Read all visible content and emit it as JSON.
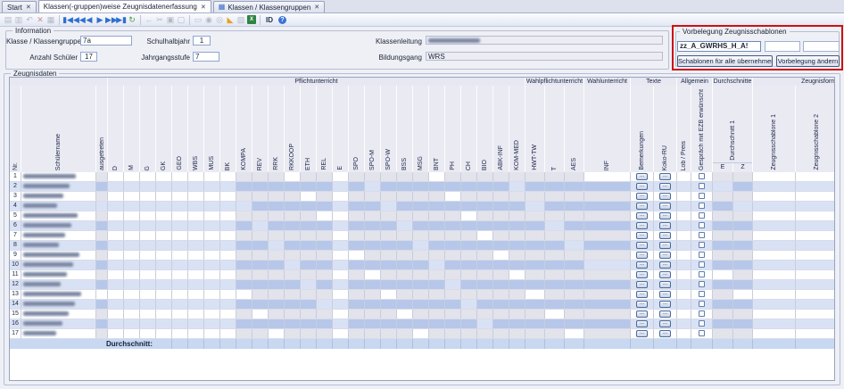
{
  "ui": {
    "close_glyph": "✕",
    "accent_red": "#cc1111"
  },
  "tabs": [
    {
      "label": "Start"
    },
    {
      "label": "Klassen(-gruppen)weise Zeugnisdatenerfassung",
      "active": true
    },
    {
      "label": "Klassen / Klassengruppen",
      "icon_glyph": "▦"
    }
  ],
  "toolbar": {
    "id_label": "ID",
    "items": [
      {
        "name": "save-icon",
        "glyph": "▤",
        "style": "dis"
      },
      {
        "name": "save-all-icon",
        "glyph": "▥",
        "style": "dis"
      },
      {
        "name": "undo-icon",
        "glyph": "↶",
        "style": "dis"
      },
      {
        "name": "delete-icon",
        "glyph": "✕",
        "style": "red"
      },
      {
        "name": "table-edit-icon",
        "glyph": "▦",
        "style": "dis"
      },
      {
        "sep": true
      },
      {
        "name": "first-record-icon",
        "glyph": "▮◀",
        "style": "nav",
        "on": true
      },
      {
        "name": "fast-backward-icon",
        "glyph": "◀◀",
        "style": "nav",
        "on": true
      },
      {
        "name": "previous-record-icon",
        "glyph": "◀",
        "style": "nav",
        "on": true
      },
      {
        "name": "next-record-icon",
        "glyph": "▶",
        "style": "nav",
        "on": true
      },
      {
        "name": "fast-forward-icon",
        "glyph": "▶▶",
        "style": "nav",
        "on": true
      },
      {
        "name": "last-record-icon",
        "glyph": "▶▮",
        "style": "nav",
        "on": true
      },
      {
        "name": "refresh-icon",
        "glyph": "↻",
        "style": "grn",
        "on": true
      },
      {
        "sep": true
      },
      {
        "name": "back-icon",
        "glyph": "←",
        "style": "dis"
      },
      {
        "name": "cut-icon",
        "glyph": "✂",
        "style": "dis"
      },
      {
        "name": "copy-icon",
        "glyph": "▣",
        "style": "dis"
      },
      {
        "name": "paste-icon",
        "glyph": "▢",
        "style": "dis"
      },
      {
        "sep": true
      },
      {
        "name": "print-icon",
        "glyph": "▭",
        "style": "dis"
      },
      {
        "name": "view-icon",
        "glyph": "◉",
        "style": "dis"
      },
      {
        "name": "pin-icon",
        "glyph": "◎",
        "style": "dis"
      },
      {
        "name": "announce-icon",
        "glyph": "◣",
        "style": "org",
        "on": true
      },
      {
        "name": "image-icon",
        "glyph": "▨",
        "style": "dis"
      },
      {
        "name": "excel-export-icon",
        "excel": true,
        "on": true
      },
      {
        "sep": true
      }
    ]
  },
  "info": {
    "title": "Information",
    "fields": [
      {
        "label": "Klasse / Klassengruppe",
        "value": "7a"
      },
      {
        "label": "Schulhalbjahr",
        "value": "1"
      },
      {
        "label": "Anzahl Schüler",
        "value": "17"
      },
      {
        "label": "Jahrgangsstufe",
        "value": "7"
      },
      {
        "label": "Klassenleitung",
        "value": "",
        "redacted": true
      },
      {
        "label": "Bildungsgang",
        "value": "WRS"
      }
    ]
  },
  "vorbelegung": {
    "title": "Vorbelegung Zeugnisschablonen",
    "template_value": "zz_A_GWRHS_H_A!",
    "buttons": [
      "Schablonen für alle übernehmen",
      "Vorbelegung ändern"
    ]
  },
  "grid": {
    "title": "Zeugnisdaten",
    "durchschnitt1_label": "Durchschnitt 1",
    "average_label": "Durchschnitt:",
    "groups": [
      {
        "label": "",
        "from": "nr",
        "to": "ausgetreten"
      },
      {
        "label": "Pflichtunterricht",
        "from": "D",
        "to": "KOM-MED"
      },
      {
        "label": "Wahlpflichtunterricht",
        "from": "HWT-TW",
        "to": "AES"
      },
      {
        "label": "Wahlunterricht",
        "from": "INF",
        "to": "INF"
      },
      {
        "label": "Texte",
        "from": "BEM",
        "to": "KOKO"
      },
      {
        "label": "Allgemein",
        "from": "LOB",
        "to": "GESP"
      },
      {
        "label": "Durchschnitte",
        "from": "D1_E",
        "to": "D1_Z"
      },
      {
        "label": "Zeugnisform",
        "from": "ZS1",
        "to": "ZS2"
      }
    ],
    "columns": [
      {
        "key": "nr",
        "label": "Nr."
      },
      {
        "key": "name",
        "label": "Schülername"
      },
      {
        "key": "ausgetreten",
        "label": "ausgetreten"
      },
      {
        "key": "D",
        "label": "D"
      },
      {
        "key": "M",
        "label": "M"
      },
      {
        "key": "G",
        "label": "G"
      },
      {
        "key": "GK",
        "label": "GK"
      },
      {
        "key": "GEO",
        "label": "GEO"
      },
      {
        "key": "WBS",
        "label": "WBS"
      },
      {
        "key": "MUS",
        "label": "MUS"
      },
      {
        "key": "BK",
        "label": "BK"
      },
      {
        "key": "KOMPA",
        "label": "KOMPA"
      },
      {
        "key": "REV",
        "label": "REV"
      },
      {
        "key": "RRK",
        "label": "RRK"
      },
      {
        "key": "RKKOOP",
        "label": "RKKOOP"
      },
      {
        "key": "ETH",
        "label": "ETH"
      },
      {
        "key": "REL",
        "label": "REL"
      },
      {
        "key": "E",
        "label": "E"
      },
      {
        "key": "SPO",
        "label": "SPO"
      },
      {
        "key": "SPO-M",
        "label": "SPO-M"
      },
      {
        "key": "SPO-W",
        "label": "SPO-W"
      },
      {
        "key": "BSS",
        "label": "BSS"
      },
      {
        "key": "MSG",
        "label": "MSG"
      },
      {
        "key": "BNT",
        "label": "BNT"
      },
      {
        "key": "PH",
        "label": "PH"
      },
      {
        "key": "CH",
        "label": "CH"
      },
      {
        "key": "BIO",
        "label": "BIO"
      },
      {
        "key": "ABK-INF",
        "label": "ABK-INF"
      },
      {
        "key": "KOM-MED",
        "label": "KOM-MED"
      },
      {
        "key": "HWT-TW",
        "label": "HWT-TW"
      },
      {
        "key": "T",
        "label": "T"
      },
      {
        "key": "AES",
        "label": "AES"
      },
      {
        "key": "INF",
        "label": "INF"
      },
      {
        "key": "BEM",
        "label": "Bemerkungen"
      },
      {
        "key": "KOKO",
        "label": "Koko-RU"
      },
      {
        "key": "LOB",
        "label": "Lob / Preis"
      },
      {
        "key": "GESP",
        "label": "Gespräch mit EZB erwünscht"
      },
      {
        "key": "D1_E",
        "label": "E"
      },
      {
        "key": "D1_Z",
        "label": "Z"
      },
      {
        "key": "ZS1",
        "label": "Zeugnisschablone 1"
      },
      {
        "key": "ZS2",
        "label": "Zeugnisschablone 2"
      }
    ],
    "students": [
      {
        "nr": 1,
        "name_redacted": true
      },
      {
        "nr": 2,
        "name_redacted": true
      },
      {
        "nr": 3,
        "name_redacted": true
      },
      {
        "nr": 4,
        "name_redacted": true
      },
      {
        "nr": 5,
        "name_redacted": true
      },
      {
        "nr": 6,
        "name_redacted": true
      },
      {
        "nr": 7,
        "name_redacted": true
      },
      {
        "nr": 8,
        "name_redacted": true
      },
      {
        "nr": 9,
        "name_redacted": true
      },
      {
        "nr": 10,
        "name_redacted": true
      },
      {
        "nr": 11,
        "name_redacted": true
      },
      {
        "nr": 12,
        "name_redacted": true
      },
      {
        "nr": 13,
        "name_redacted": true
      },
      {
        "nr": 14,
        "name_redacted": true
      },
      {
        "nr": 15,
        "name_redacted": true
      },
      {
        "nr": 16,
        "name_redacted": true
      },
      {
        "nr": 17,
        "name_redacted": true
      }
    ]
  }
}
